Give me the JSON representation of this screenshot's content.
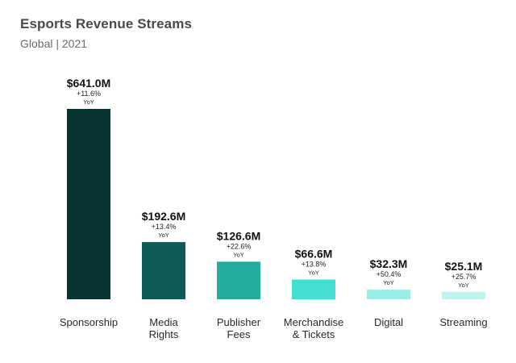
{
  "header": {
    "title": "Esports Revenue Streams",
    "subtitle": "Global | 2021"
  },
  "chart_data": {
    "type": "bar",
    "title": "Esports Revenue Streams",
    "subtitle": "Global | 2021",
    "xlabel": "",
    "ylabel": "",
    "ylim": [
      0,
      641.0
    ],
    "grid": false,
    "yoy_suffix": "YoY",
    "categories": [
      [
        "Sponsorship"
      ],
      [
        "Media",
        "Rights"
      ],
      [
        "Publisher",
        "Fees"
      ],
      [
        "Merchandise",
        "& Tickets"
      ],
      [
        "Digital"
      ],
      [
        "Streaming"
      ]
    ],
    "values": [
      641.0,
      192.6,
      126.6,
      66.6,
      32.3,
      25.1
    ],
    "value_labels": [
      "$641.0M",
      "$192.6M",
      "$126.6M",
      "$66.6M",
      "$32.3M",
      "$25.1M"
    ],
    "yoy_changes": [
      "+11.6%",
      "+13.4%",
      "+22.6%",
      "+13.8%",
      "+50.4%",
      "+25.7%"
    ],
    "colors": [
      "#083532",
      "#0e5b55",
      "#22ae9f",
      "#43e0d2",
      "#99eee6",
      "#c0f4ef"
    ]
  }
}
